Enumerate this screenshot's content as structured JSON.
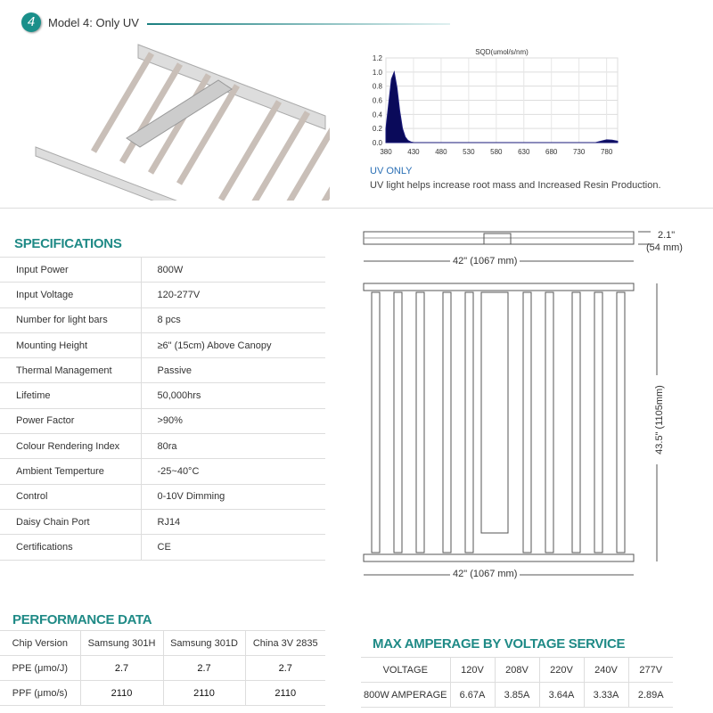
{
  "header": {
    "number": "4",
    "title": "Model 4: Only UV"
  },
  "chart_data": {
    "type": "area",
    "title": "SQD(umol/s/nm)",
    "xlabel": "",
    "ylabel": "",
    "xlim": [
      380,
      800
    ],
    "ylim": [
      0,
      1.2
    ],
    "x_ticks": [
      "380",
      "430",
      "480",
      "530",
      "580",
      "630",
      "680",
      "730",
      "780"
    ],
    "y_ticks": [
      "0.0",
      "0.2",
      "0.4",
      "0.6",
      "0.8",
      "1.0",
      "1.2"
    ],
    "grid": true,
    "x": [
      380,
      385,
      390,
      395,
      400,
      405,
      410,
      415,
      420,
      425,
      430,
      440,
      760,
      770,
      780,
      790,
      800
    ],
    "y": [
      0.2,
      0.55,
      0.9,
      1.0,
      0.78,
      0.45,
      0.2,
      0.08,
      0.03,
      0.01,
      0.0,
      0.0,
      0.0,
      0.02,
      0.04,
      0.035,
      0.02
    ],
    "colors": {
      "fill": "#0a0a5a",
      "line": "#1a1a7a"
    }
  },
  "uv": {
    "label": "UV ONLY",
    "description": "UV light helps increase root mass and Increased Resin Production."
  },
  "specs": {
    "title": "SPECIFICATIONS",
    "rows": [
      [
        "Input Power",
        "800W"
      ],
      [
        "Input Voltage",
        "120-277V"
      ],
      [
        "Number for light bars",
        "8 pcs"
      ],
      [
        "Mounting Height",
        "≥6\" (15cm) Above Canopy"
      ],
      [
        "Thermal Management",
        "Passive"
      ],
      [
        "Lifetime",
        "50,000hrs"
      ],
      [
        "Power Factor",
        ">90%"
      ],
      [
        "Colour Rendering Index",
        "80ra"
      ],
      [
        "Ambient Temperture",
        "-25~40°C"
      ],
      [
        "Control",
        "0-10V Dimming"
      ],
      [
        "Daisy Chain Port",
        "RJ14"
      ],
      [
        "Certifications",
        "CE"
      ]
    ]
  },
  "dims": {
    "height": "2.1\"",
    "height_mm": "(54 mm)",
    "width_top": "42\" (1067 mm)",
    "length": "43.5\" (1105mm)",
    "width_bottom": "42\" (1067 mm)"
  },
  "performance": {
    "title": "PERFORMANCE DATA",
    "header": [
      "Chip Version",
      "Samsung 301H",
      "Samsung 301D",
      "China 3V 2835"
    ],
    "rows": [
      [
        "PPE (μmo/J)",
        "2.7",
        "2.7",
        "2.7"
      ],
      [
        "PPF (μmo/s)",
        "2110",
        "2110",
        "2110"
      ]
    ]
  },
  "amperage": {
    "title": "MAX AMPERAGE BY VOLTAGE SERVICE",
    "header": [
      "VOLTAGE",
      "120V",
      "208V",
      "220V",
      "240V",
      "277V"
    ],
    "rows": [
      [
        "800W AMPERAGE",
        "6.67A",
        "3.85A",
        "3.64A",
        "3.33A",
        "2.89A"
      ]
    ]
  },
  "colors": {
    "accent": "#1f8a86",
    "uv_label": "#2a6fb5"
  }
}
